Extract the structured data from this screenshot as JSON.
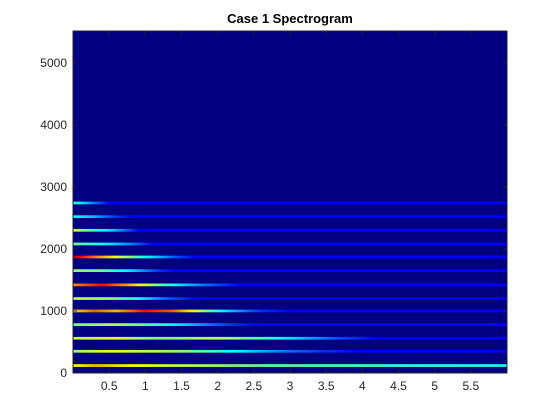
{
  "chart_data": {
    "type": "heatmap",
    "title": "Case 1 Spectrogram",
    "xlabel": "",
    "ylabel": "",
    "xlim": [
      0,
      6
    ],
    "ylim": [
      0,
      5512
    ],
    "x_ticks": [
      0.5,
      1,
      1.5,
      2,
      2.5,
      3,
      3.5,
      4,
      4.5,
      5,
      5.5
    ],
    "y_ticks": [
      0,
      1000,
      2000,
      3000,
      4000,
      5000
    ],
    "colormap": "jet",
    "background_color": "#000080",
    "grid": false,
    "bands": [
      {
        "freq": 120,
        "intensity": [
          [
            0,
            0.55
          ],
          [
            0.3,
            0.65
          ],
          [
            0.6,
            0.6
          ],
          [
            1.0,
            0.55
          ],
          [
            1.5,
            0.5
          ],
          [
            2.0,
            0.45
          ],
          [
            2.5,
            0.4
          ],
          [
            3.0,
            0.38
          ],
          [
            4.0,
            0.35
          ],
          [
            5.0,
            0.33
          ],
          [
            6.0,
            0.32
          ]
        ]
      },
      {
        "freq": 350,
        "intensity": [
          [
            0,
            0.45
          ],
          [
            0.5,
            0.55
          ],
          [
            1.0,
            0.5
          ],
          [
            1.5,
            0.42
          ],
          [
            2.0,
            0.35
          ],
          [
            2.6,
            0.2
          ],
          [
            3.0,
            0.12
          ],
          [
            3.5,
            0.05
          ],
          [
            4.0,
            0.0
          ]
        ]
      },
      {
        "freq": 560,
        "intensity": [
          [
            0,
            0.5
          ],
          [
            0.6,
            0.55
          ],
          [
            1.0,
            0.45
          ],
          [
            1.5,
            0.45
          ],
          [
            2.0,
            0.5
          ],
          [
            2.5,
            0.4
          ],
          [
            3.0,
            0.25
          ],
          [
            3.6,
            0.1
          ],
          [
            4.2,
            0.0
          ]
        ]
      },
      {
        "freq": 780,
        "intensity": [
          [
            0,
            0.4
          ],
          [
            0.5,
            0.5
          ],
          [
            1.0,
            0.4
          ],
          [
            1.5,
            0.25
          ],
          [
            2.0,
            0.1
          ],
          [
            2.5,
            0.0
          ]
        ]
      },
      {
        "freq": 1000,
        "intensity": [
          [
            0,
            0.6
          ],
          [
            0.3,
            0.75
          ],
          [
            0.6,
            0.65
          ],
          [
            1.0,
            0.85
          ],
          [
            1.4,
            0.75
          ],
          [
            1.8,
            0.45
          ],
          [
            2.2,
            0.2
          ],
          [
            2.6,
            0.05
          ],
          [
            3.0,
            0.0
          ]
        ]
      },
      {
        "freq": 1200,
        "intensity": [
          [
            0,
            0.5
          ],
          [
            0.5,
            0.45
          ],
          [
            0.9,
            0.3
          ],
          [
            1.3,
            0.1
          ],
          [
            1.7,
            0.0
          ]
        ]
      },
      {
        "freq": 1420,
        "intensity": [
          [
            0,
            0.7
          ],
          [
            0.4,
            0.85
          ],
          [
            0.8,
            0.65
          ],
          [
            1.2,
            0.4
          ],
          [
            1.6,
            0.2
          ],
          [
            2.0,
            0.08
          ],
          [
            2.3,
            0.0
          ]
        ]
      },
      {
        "freq": 1650,
        "intensity": [
          [
            0,
            0.45
          ],
          [
            0.4,
            0.4
          ],
          [
            0.8,
            0.25
          ],
          [
            1.2,
            0.05
          ],
          [
            1.4,
            0.0
          ]
        ]
      },
      {
        "freq": 1870,
        "intensity": [
          [
            0,
            0.95
          ],
          [
            0.25,
            0.75
          ],
          [
            0.6,
            0.55
          ],
          [
            1.0,
            0.3
          ],
          [
            1.4,
            0.1
          ],
          [
            1.7,
            0.0
          ]
        ]
      },
      {
        "freq": 2080,
        "intensity": [
          [
            0,
            0.4
          ],
          [
            0.4,
            0.3
          ],
          [
            0.8,
            0.15
          ],
          [
            1.1,
            0.0
          ]
        ]
      },
      {
        "freq": 2300,
        "intensity": [
          [
            0,
            0.55
          ],
          [
            0.2,
            0.4
          ],
          [
            0.6,
            0.2
          ],
          [
            0.9,
            0.0
          ]
        ]
      },
      {
        "freq": 2520,
        "intensity": [
          [
            0,
            0.3
          ],
          [
            0.3,
            0.2
          ],
          [
            0.6,
            0.05
          ],
          [
            0.8,
            0.0
          ]
        ]
      },
      {
        "freq": 2740,
        "intensity": [
          [
            0,
            0.35
          ],
          [
            0.2,
            0.2
          ],
          [
            0.5,
            0.0
          ]
        ]
      }
    ]
  }
}
